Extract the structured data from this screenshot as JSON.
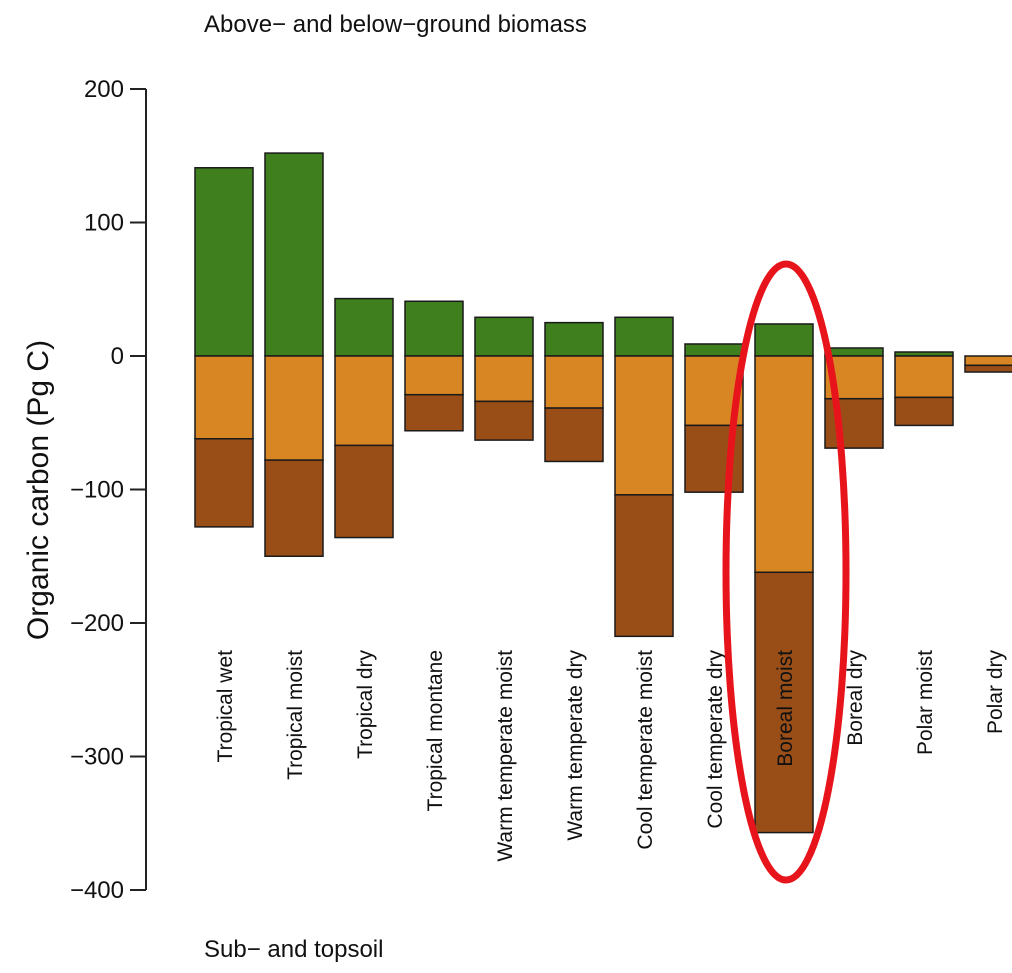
{
  "chart_data": {
    "type": "bar",
    "top_caption": "Above− and below−ground biomass",
    "bottom_caption": "Sub− and topsoil",
    "ylabel": "Organic carbon (Pg C)",
    "ylim": [
      -400,
      200
    ],
    "yticks": [
      {
        "value": 200,
        "label": "200"
      },
      {
        "value": 100,
        "label": "100"
      },
      {
        "value": 0,
        "label": "0"
      },
      {
        "value": -100,
        "label": "−100"
      },
      {
        "value": -200,
        "label": "−200"
      },
      {
        "value": -300,
        "label": "−300"
      },
      {
        "value": -400,
        "label": "−400"
      }
    ],
    "categories": [
      "Tropical wet",
      "Tropical moist",
      "Tropical dry",
      "Tropical montane",
      "Warm temperate moist",
      "Warm temperate dry",
      "Cool temperate moist",
      "Cool temperate dry",
      "Boreal moist",
      "Boreal dry",
      "Polar moist",
      "Polar dry"
    ],
    "series": [
      {
        "color": "#3f7f1e",
        "values": [
          141,
          152,
          43,
          41,
          29,
          25,
          29,
          9,
          24,
          6,
          3,
          0
        ]
      },
      {
        "color": "#d88624",
        "values": [
          -62,
          -78,
          -67,
          -29,
          -34,
          -39,
          -104,
          -52,
          -162,
          -32,
          -31,
          -7
        ]
      },
      {
        "color": "#9a4e17",
        "values": [
          -66,
          -72,
          -69,
          -27,
          -29,
          -40,
          -106,
          -50,
          -195,
          -37,
          -21,
          -5
        ]
      }
    ],
    "highlight": {
      "category": "Boreal moist",
      "label_color": "#f2e8d0",
      "ring_color": "#e8141c"
    },
    "bar_edge_color": "#1a1a1a",
    "grid": false,
    "legend": "none"
  }
}
